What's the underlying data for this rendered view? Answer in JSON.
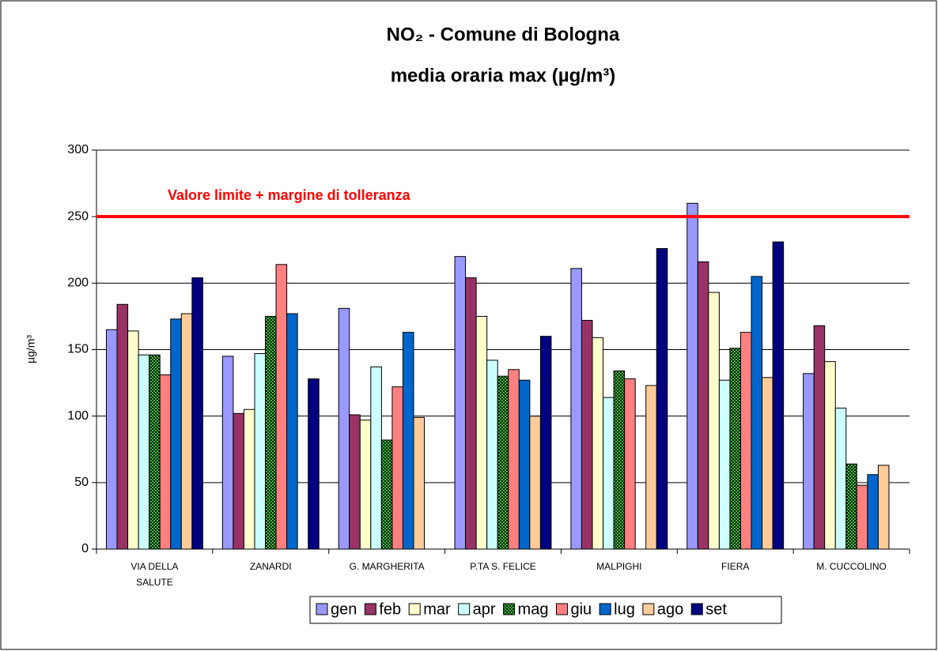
{
  "chart_data": {
    "type": "bar",
    "title": "NO₂ - Comune di Bologna",
    "subtitle": "media oraria max  (µg/m³)",
    "y_label": "µg/m³",
    "categories": [
      "VIA DELLA SALUTE",
      "ZANARDI",
      "G. MARGHERITA",
      "P.TA S. FELICE",
      "MALPIGHI",
      "FIERA",
      "M. CUCCOLINO"
    ],
    "series": [
      {
        "name": "gen",
        "color": "#9999ff",
        "values": [
          165,
          145,
          181,
          220,
          211,
          260,
          132
        ]
      },
      {
        "name": "feb",
        "color": "#993366",
        "values": [
          184,
          102,
          101,
          204,
          172,
          216,
          168
        ]
      },
      {
        "name": "mar",
        "color": "#ffffcc",
        "values": [
          164,
          105,
          97,
          175,
          159,
          193,
          141
        ]
      },
      {
        "name": "apr",
        "color": "#ccffff",
        "values": [
          146,
          147,
          137,
          142,
          114,
          127,
          106
        ]
      },
      {
        "name": "mag",
        "color": "#339933",
        "pattern": "checkered",
        "values": [
          146,
          175,
          82,
          130,
          134,
          151,
          64
        ]
      },
      {
        "name": "giu",
        "color": "#ff8080",
        "values": [
          131,
          214,
          122,
          135,
          128,
          163,
          48
        ]
      },
      {
        "name": "lug",
        "color": "#0066cc",
        "values": [
          173,
          177,
          163,
          127,
          null,
          205,
          56
        ]
      },
      {
        "name": "ago",
        "color": "#ffcc99",
        "values": [
          177,
          null,
          99,
          100,
          123,
          129,
          63
        ]
      },
      {
        "name": "set",
        "color": "#000080",
        "values": [
          204,
          128,
          null,
          160,
          226,
          231,
          null
        ]
      }
    ],
    "threshold": {
      "value": 250,
      "label": "Valore limite + margine di tolleranza",
      "color": "#ff0000"
    },
    "ylim": [
      0,
      300
    ],
    "yticks": [
      0,
      50,
      100,
      150,
      200,
      250,
      300
    ],
    "grid": true,
    "legend": "bottom"
  }
}
